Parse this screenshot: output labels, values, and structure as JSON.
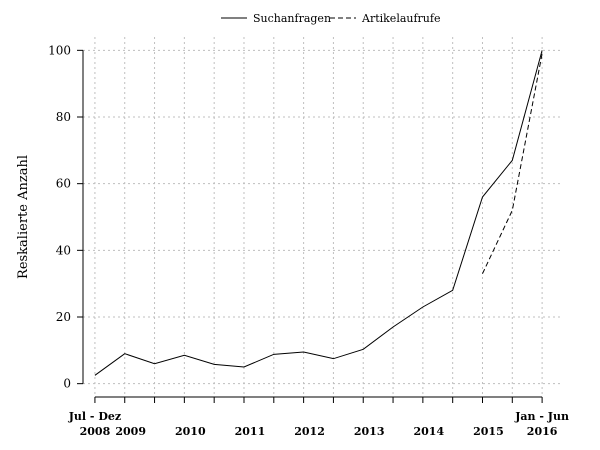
{
  "chart_data": {
    "type": "line",
    "ylabel": "Reskalierte Anzahl",
    "ylim": [
      -4,
      104
    ],
    "yticks": [
      0,
      20,
      40,
      60,
      80,
      100
    ],
    "grid": true,
    "legend_position": "top-center",
    "x_start_label": {
      "line1": "Jul - Dez",
      "line2": "2008"
    },
    "x_end_label": {
      "line1": "Jan - Jun",
      "line2": "2016"
    },
    "year_labels": [
      "2009",
      "2010",
      "2011",
      "2012",
      "2013",
      "2014",
      "2015"
    ],
    "x": [
      2008.5,
      2009.0,
      2009.5,
      2010.0,
      2010.5,
      2011.0,
      2011.5,
      2012.0,
      2012.5,
      2013.0,
      2013.5,
      2014.0,
      2014.5,
      2015.0,
      2015.5,
      2016.0
    ],
    "series": [
      {
        "name": "Suchanfragen",
        "style": "solid",
        "color": "#000000",
        "values": [
          2.5,
          9,
          6,
          8.5,
          5.8,
          5,
          8.8,
          9.5,
          7.5,
          10.3,
          17,
          23,
          28,
          56,
          67,
          100
        ]
      },
      {
        "name": "Artikelaufrufe",
        "style": "dashed",
        "color": "#000000",
        "values": [
          null,
          null,
          null,
          null,
          null,
          null,
          null,
          null,
          null,
          null,
          null,
          null,
          null,
          33,
          52,
          99
        ]
      }
    ]
  }
}
